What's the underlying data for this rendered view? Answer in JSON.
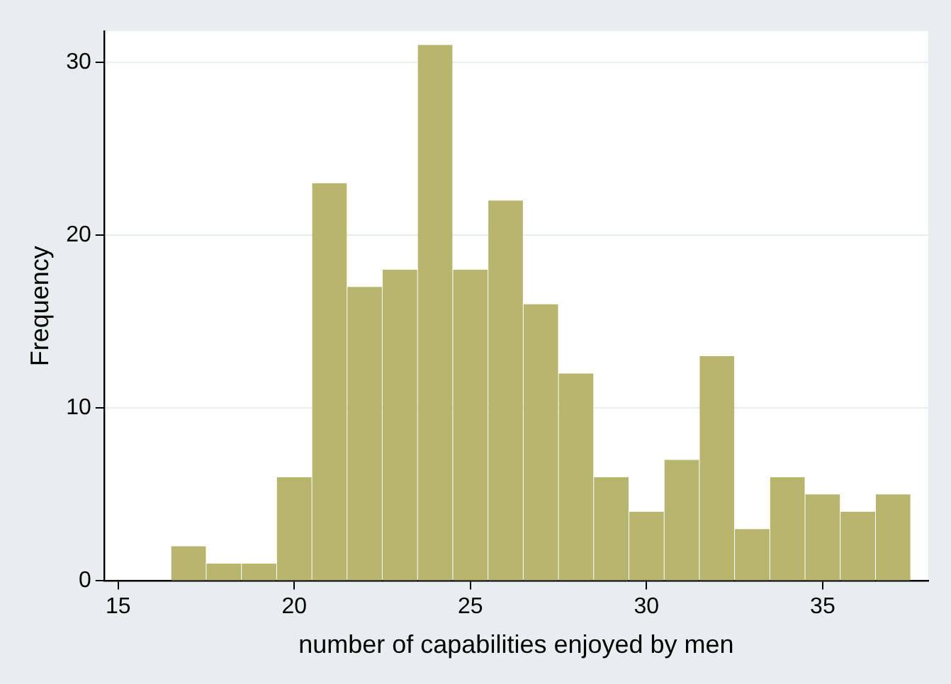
{
  "chart_data": {
    "type": "histogram",
    "xlabel": "number of capabilities enjoyed by men",
    "ylabel": "Frequency",
    "bins": [
      16.5,
      17.5,
      18.5,
      19.5,
      20.5,
      21.5,
      22.5,
      23.5,
      24.5,
      25.5,
      26.5,
      27.5,
      28.5,
      29.5,
      30.5,
      31.5,
      32.5,
      33.5,
      34.5,
      35.5,
      36.5,
      37.5
    ],
    "values": [
      2,
      1,
      1,
      6,
      23,
      17,
      18,
      31,
      18,
      22,
      16,
      12,
      6,
      4,
      7,
      13,
      3,
      6,
      5,
      4,
      5
    ],
    "color": "#b8b66e",
    "xlim": [
      14.6,
      38
    ],
    "xticks": [
      15,
      20,
      25,
      30,
      35
    ],
    "ylim": [
      0,
      31.8
    ],
    "yticks": [
      0,
      10,
      20,
      30
    ],
    "grid": "y"
  }
}
